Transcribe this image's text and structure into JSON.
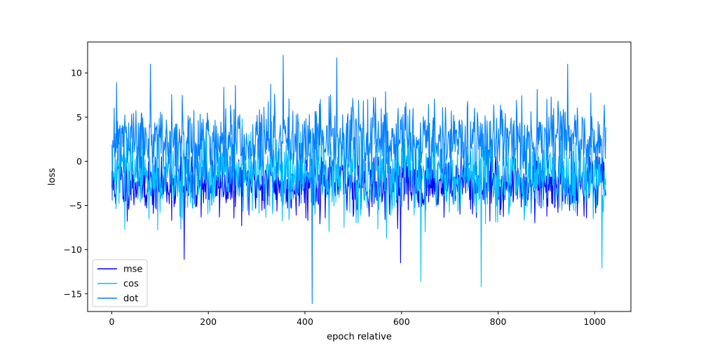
{
  "chart_data": {
    "type": "line",
    "title": "",
    "xlabel": "epoch relative",
    "ylabel": "loss",
    "xlim": [
      -50,
      1075
    ],
    "ylim": [
      -17,
      13.5
    ],
    "xticks": [
      0,
      200,
      400,
      600,
      800,
      1000
    ],
    "yticks": [
      -15,
      -10,
      -5,
      0,
      5,
      10
    ],
    "grid": false,
    "legend_position": "lower-left",
    "series": [
      {
        "name": "mse",
        "color": "#0000ff",
        "x_start": 0,
        "x_end": 1023,
        "approx_mean": -2.5,
        "approx_range": [
          -11.5,
          0.8
        ],
        "notable_points": [
          {
            "x": 150,
            "y": -11.1
          },
          {
            "x": 598,
            "y": -11.5
          }
        ]
      },
      {
        "name": "cos",
        "color": "#00bfff",
        "x_start": 0,
        "x_end": 1023,
        "approx_mean": -1.5,
        "approx_range": [
          -14.2,
          5.5
        ],
        "notable_points": [
          {
            "x": 640,
            "y": -13.6
          },
          {
            "x": 765,
            "y": -14.2
          },
          {
            "x": 1015,
            "y": -12.1
          }
        ]
      },
      {
        "name": "dot",
        "color": "#007fff",
        "x_start": 0,
        "x_end": 1023,
        "approx_mean": 2.2,
        "approx_range": [
          -16.1,
          12.0
        ],
        "notable_points": [
          {
            "x": 80,
            "y": 11.0
          },
          {
            "x": 355,
            "y": 12.0
          },
          {
            "x": 415,
            "y": -16.1
          },
          {
            "x": 466,
            "y": 11.7
          },
          {
            "x": 944,
            "y": 11.0
          }
        ]
      }
    ]
  }
}
